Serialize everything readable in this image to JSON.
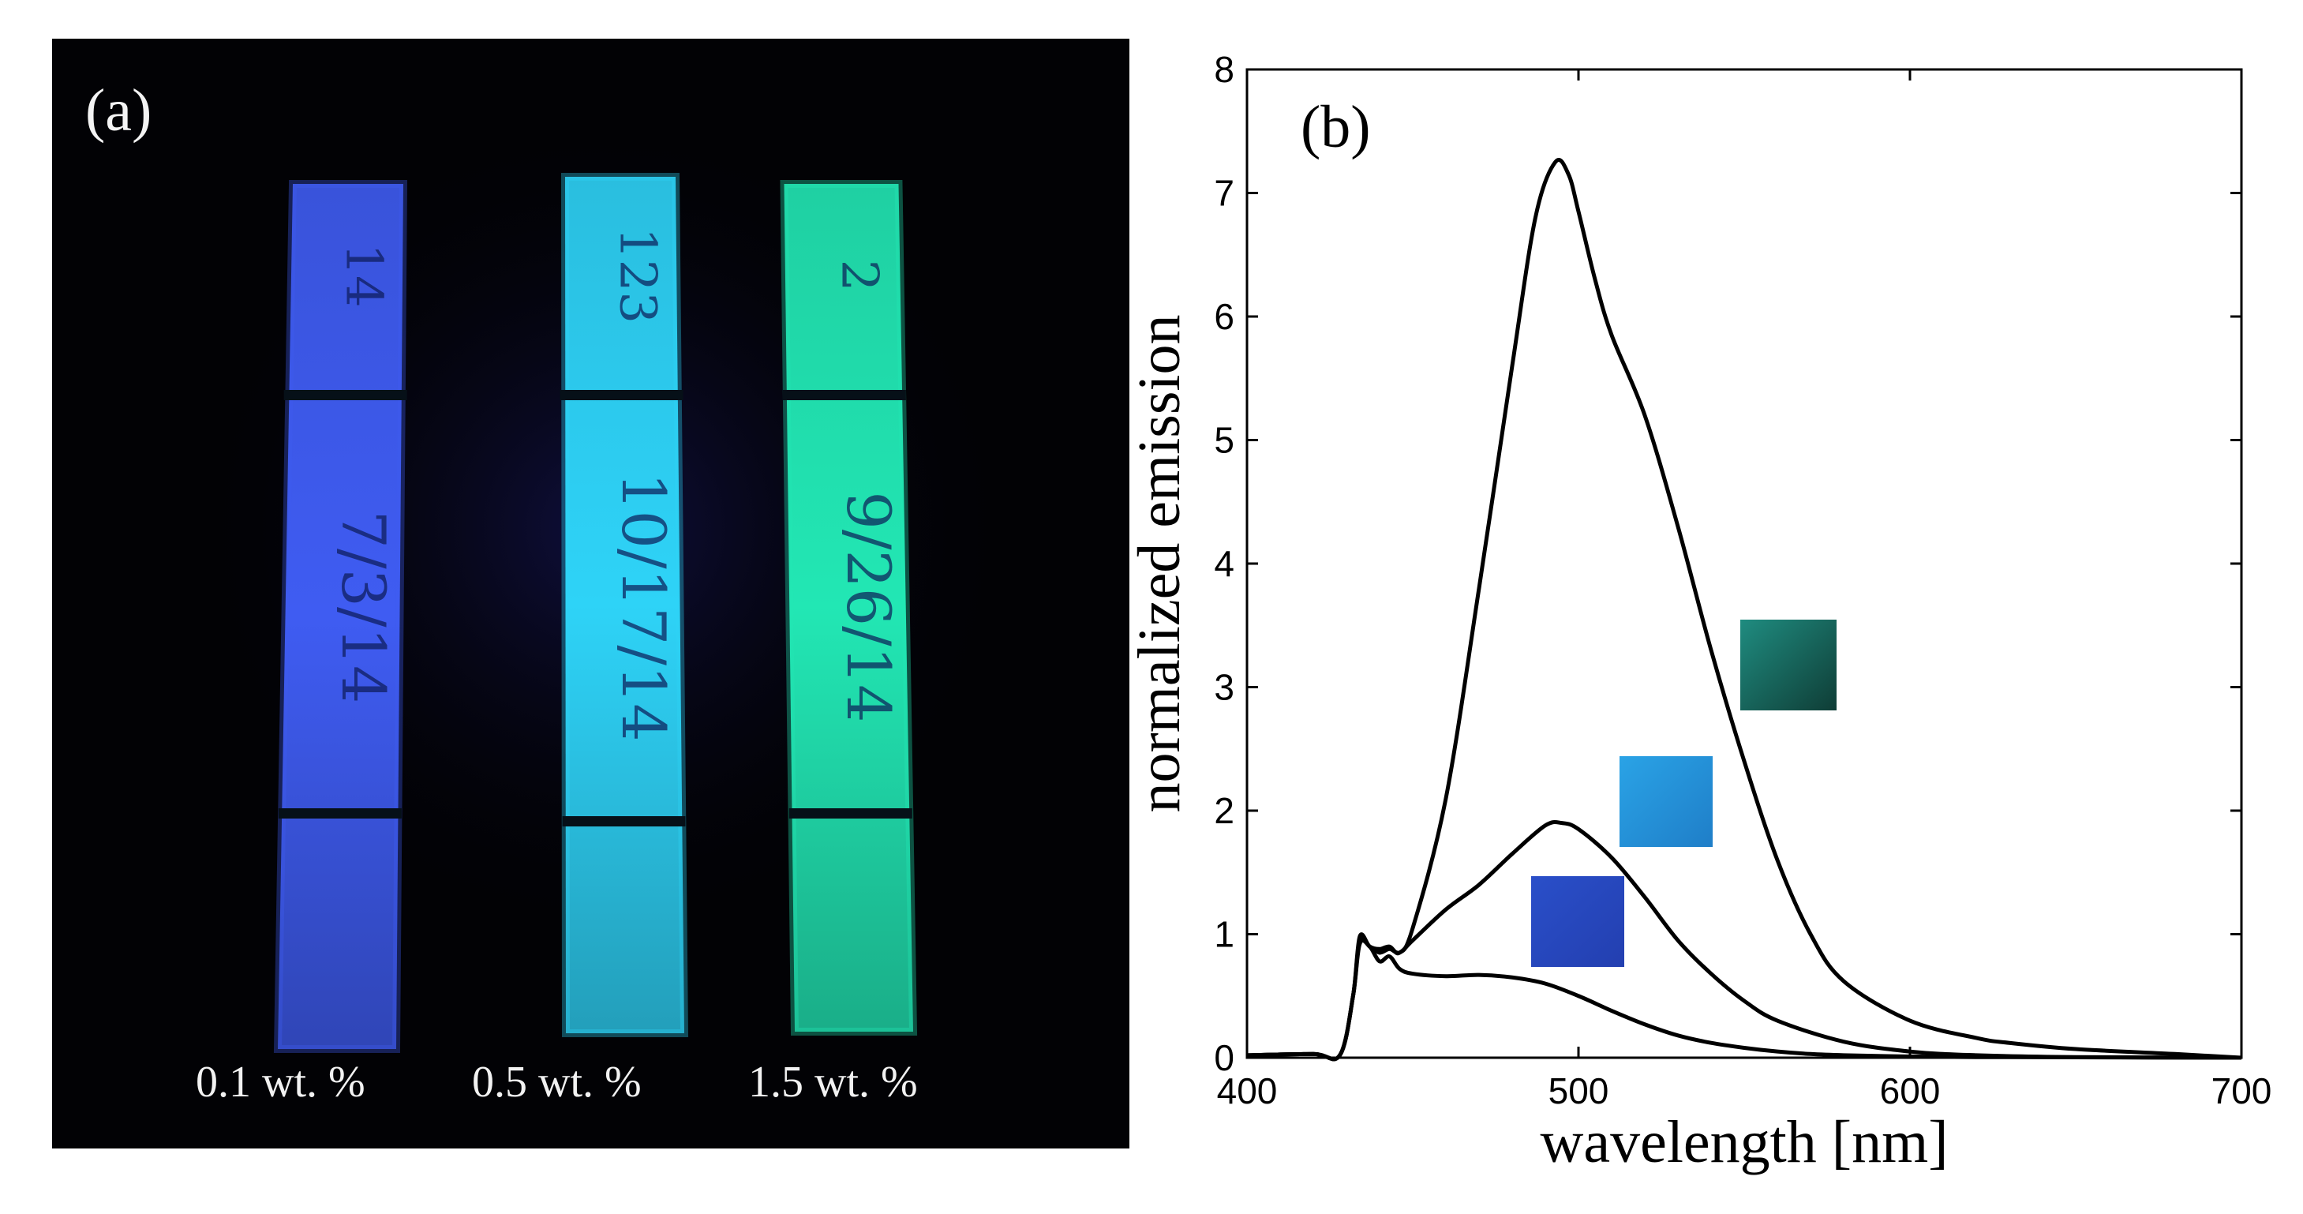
{
  "panel_a": {
    "label": "(a)",
    "strips": [
      {
        "concentration_label": "0.1 wt. %",
        "glow_color": "#3f5cf2",
        "handwriting": [
          "14",
          "7/3/14"
        ]
      },
      {
        "concentration_label": "0.5 wt. %",
        "glow_color": "#2ed3f7",
        "handwriting": [
          "123",
          "10/17/14"
        ]
      },
      {
        "concentration_label": "1.5 wt. %",
        "glow_color": "#22e7b4",
        "handwriting": [
          "2",
          "9/26/14"
        ]
      }
    ]
  },
  "panel_b": {
    "label": "(b)",
    "swatches": [
      {
        "color_from": "#2a4fc9",
        "color_to": "#233fb0",
        "sample": "0.1 wt. %"
      },
      {
        "color_from": "#2aa3e6",
        "color_to": "#1f7ec8",
        "sample": "0.5 wt. %"
      },
      {
        "color_from": "#1f8c80",
        "color_to": "#0f3d36",
        "sample": "1.5 wt. %"
      }
    ]
  },
  "chart_data": {
    "type": "line",
    "title": "",
    "xlabel": "wavelength [nm]",
    "ylabel": "normalized emission",
    "xlim": [
      400,
      700
    ],
    "ylim": [
      0,
      8
    ],
    "x_ticks": [
      400,
      500,
      600,
      700
    ],
    "y_ticks": [
      0,
      1,
      2,
      3,
      4,
      5,
      6,
      7,
      8
    ],
    "grid": false,
    "line_color": "#000000",
    "series": [
      {
        "x": [
          400,
          420,
          428,
          432,
          434,
          437,
          440,
          443,
          446,
          450,
          460,
          470,
          480,
          490,
          500,
          510,
          520,
          530,
          540,
          550,
          560,
          570,
          580,
          600,
          620,
          650,
          700
        ],
        "y": [
          0.02,
          0.03,
          0.02,
          0.5,
          0.92,
          0.9,
          0.78,
          0.82,
          0.72,
          0.68,
          0.66,
          0.67,
          0.65,
          0.6,
          0.5,
          0.38,
          0.27,
          0.18,
          0.12,
          0.08,
          0.05,
          0.03,
          0.02,
          0.01,
          0.005,
          0.003,
          0.0
        ]
      },
      {
        "x": [
          400,
          420,
          428,
          432,
          434,
          437,
          440,
          443,
          446,
          450,
          460,
          470,
          480,
          490,
          495,
          500,
          510,
          520,
          530,
          540,
          550,
          560,
          580,
          600,
          620,
          650,
          700
        ],
        "y": [
          0.02,
          0.03,
          0.02,
          0.5,
          0.95,
          0.9,
          0.85,
          0.88,
          0.85,
          0.95,
          1.2,
          1.4,
          1.65,
          1.88,
          1.9,
          1.85,
          1.62,
          1.3,
          0.95,
          0.68,
          0.46,
          0.3,
          0.13,
          0.05,
          0.02,
          0.005,
          0.0
        ]
      },
      {
        "x": [
          400,
          420,
          428,
          432,
          434,
          437,
          440,
          443,
          446,
          450,
          460,
          470,
          480,
          487,
          493,
          497,
          500,
          505,
          510,
          520,
          530,
          540,
          550,
          560,
          570,
          580,
          600,
          620,
          630,
          650,
          680,
          700
        ],
        "y": [
          0.02,
          0.03,
          0.02,
          0.5,
          0.98,
          0.9,
          0.88,
          0.9,
          0.85,
          1.05,
          2.1,
          3.8,
          5.6,
          6.8,
          7.25,
          7.15,
          6.85,
          6.3,
          5.85,
          5.2,
          4.3,
          3.3,
          2.4,
          1.6,
          1.0,
          0.62,
          0.3,
          0.16,
          0.12,
          0.07,
          0.03,
          0.0
        ]
      }
    ]
  }
}
